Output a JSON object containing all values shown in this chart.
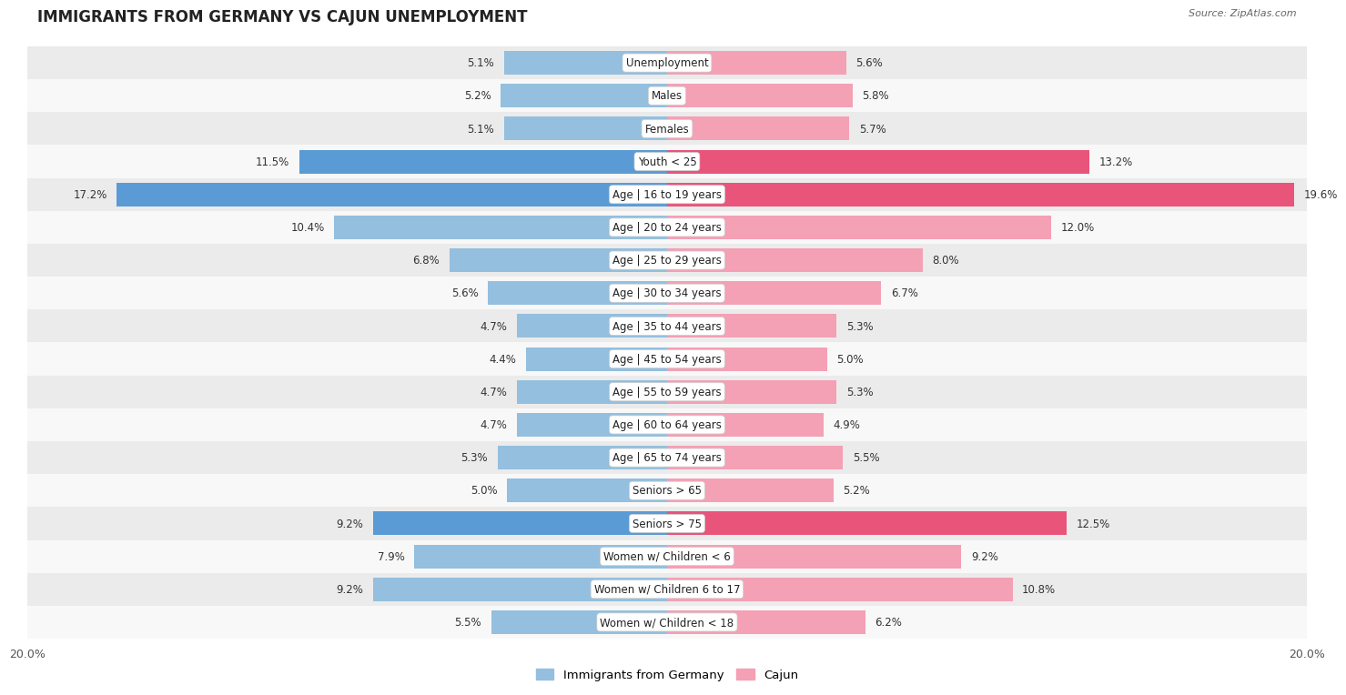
{
  "title": "IMMIGRANTS FROM GERMANY VS CAJUN UNEMPLOYMENT",
  "source": "Source: ZipAtlas.com",
  "categories": [
    "Unemployment",
    "Males",
    "Females",
    "Youth < 25",
    "Age | 16 to 19 years",
    "Age | 20 to 24 years",
    "Age | 25 to 29 years",
    "Age | 30 to 34 years",
    "Age | 35 to 44 years",
    "Age | 45 to 54 years",
    "Age | 55 to 59 years",
    "Age | 60 to 64 years",
    "Age | 65 to 74 years",
    "Seniors > 65",
    "Seniors > 75",
    "Women w/ Children < 6",
    "Women w/ Children 6 to 17",
    "Women w/ Children < 18"
  ],
  "germany_values": [
    5.1,
    5.2,
    5.1,
    11.5,
    17.2,
    10.4,
    6.8,
    5.6,
    4.7,
    4.4,
    4.7,
    4.7,
    5.3,
    5.0,
    9.2,
    7.9,
    9.2,
    5.5
  ],
  "cajun_values": [
    5.6,
    5.8,
    5.7,
    13.2,
    19.6,
    12.0,
    8.0,
    6.7,
    5.3,
    5.0,
    5.3,
    4.9,
    5.5,
    5.2,
    12.5,
    9.2,
    10.8,
    6.2
  ],
  "germany_color": "#94bfde",
  "cajun_color": "#f4a0b5",
  "germany_highlight_color": "#5b9bd5",
  "cajun_highlight_color": "#e8547a",
  "highlight_rows": [
    3,
    4,
    14
  ],
  "axis_limit": 20.0,
  "background_color": "#ffffff",
  "row_bg_light": "#ebebeb",
  "row_bg_white": "#f8f8f8",
  "bar_height": 0.72,
  "legend_germany": "Immigrants from Germany",
  "legend_cajun": "Cajun"
}
